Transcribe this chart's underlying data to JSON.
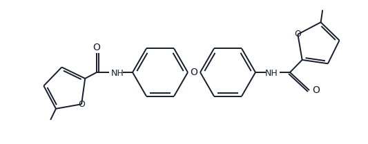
{
  "background": "#ffffff",
  "line_color": "#1a1a2e",
  "line_width": 1.4,
  "figsize": [
    5.33,
    2.09
  ],
  "dpi": 100,
  "xlim": [
    0,
    533
  ],
  "ylim": [
    0,
    209
  ]
}
